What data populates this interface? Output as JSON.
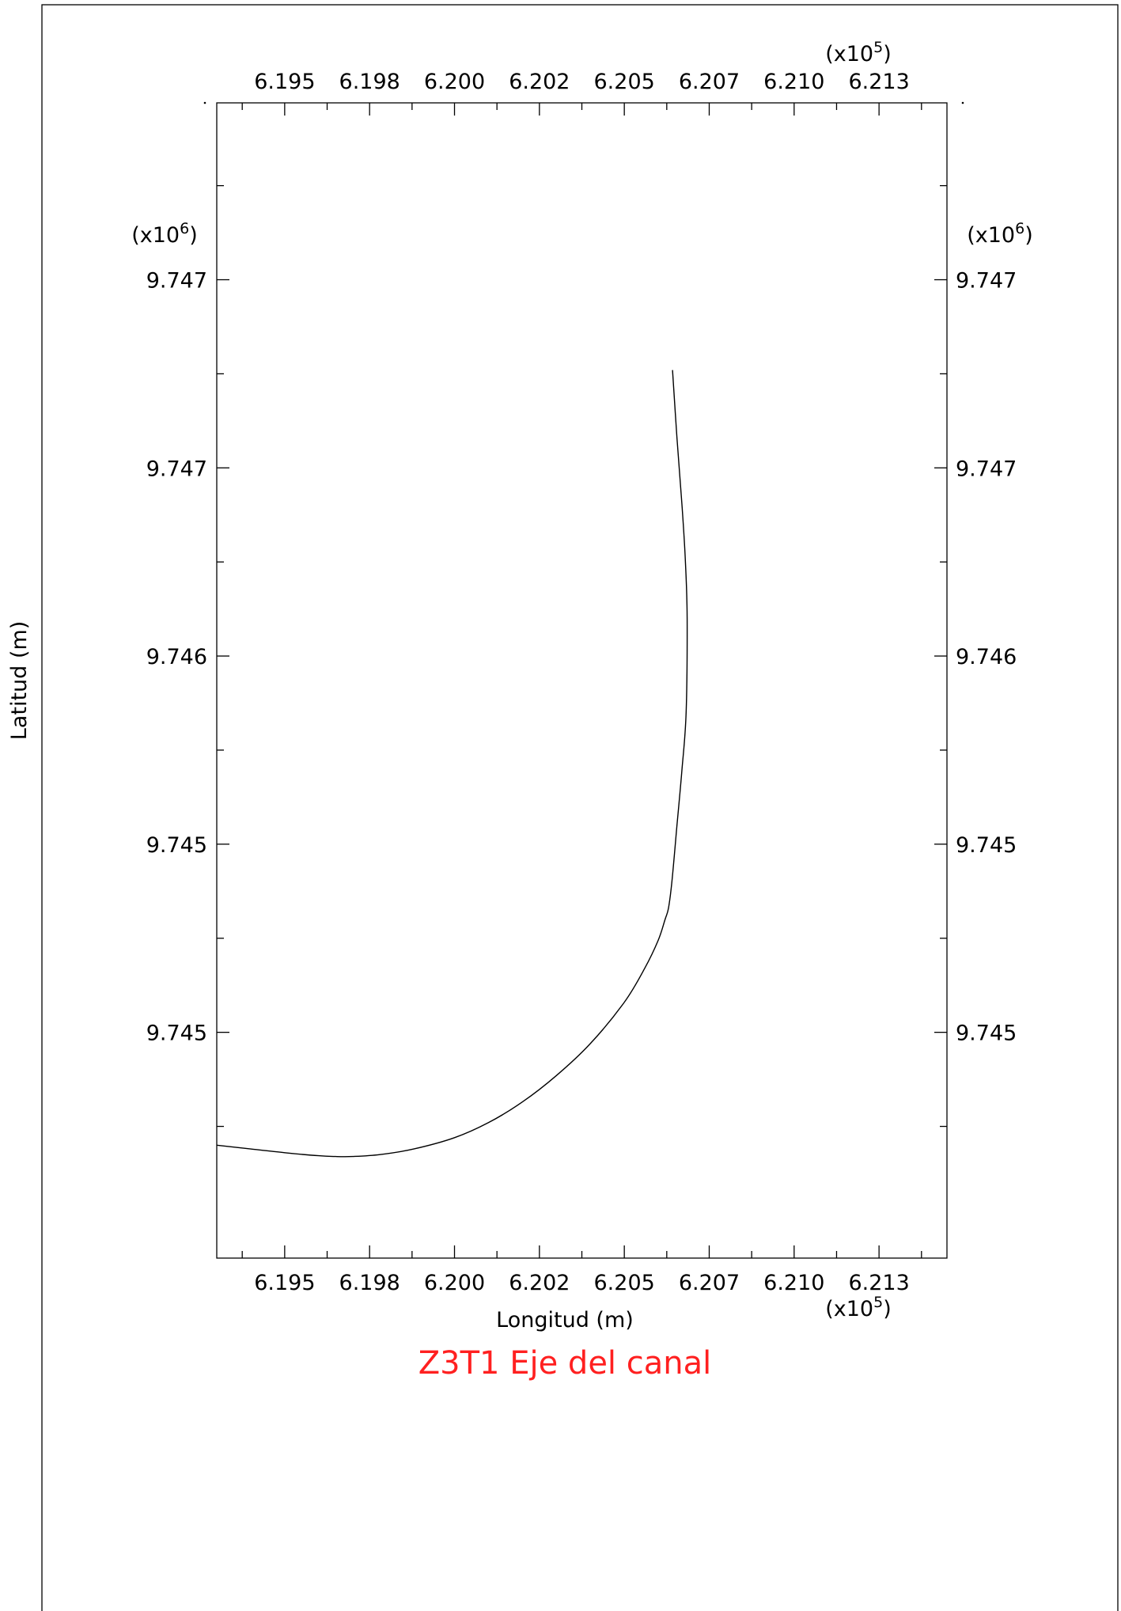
{
  "chart_data": {
    "type": "line",
    "title": "Z3T1 Eje del canal",
    "xlabel": "Longitud (m)",
    "ylabel": "Latitud (m)",
    "x_multiplier": "(x10",
    "x_multiplier_exp": "5",
    "y_multiplier": "(x10",
    "y_multiplier_exp": "6",
    "x_tick_labels": [
      "6.195",
      "6.198",
      "6.200",
      "6.202",
      "6.205",
      "6.207",
      "6.210",
      "6.213"
    ],
    "y_tick_labels": [
      "9.747",
      "9.747",
      "9.746",
      "9.745",
      "9.745"
    ],
    "xlim": [
      619300,
      621450
    ],
    "ylim": [
      9744400,
      9747470
    ],
    "x_tick_values": [
      619500,
      619750,
      620000,
      620250,
      620500,
      620750,
      621000,
      621250
    ],
    "y_tick_values": [
      9747000,
      9746500,
      9746000,
      9745500,
      9745000
    ],
    "grid": false,
    "title_color": "#ff2020",
    "line_color": "#000000",
    "series": [
      {
        "x": [
          619300,
          619400,
          619500,
          619600,
          619650,
          619700,
          619780,
          619880,
          620000,
          620100,
          620200,
          620300,
          620400,
          620500,
          620560,
          620600,
          620620,
          620630,
          620640,
          620655,
          620670,
          620682,
          620685,
          620680,
          620670,
          620655,
          620642
        ],
        "y": [
          9744700,
          9744690,
          9744680,
          9744672,
          9744670,
          9744670,
          9744675,
          9744690,
          9744720,
          9744760,
          9744815,
          9744885,
          9744970,
          9745080,
          9745170,
          9745245,
          9745300,
          9745330,
          9745400,
          9745550,
          9745700,
          9745850,
          9746100,
          9746250,
          9746400,
          9746580,
          9746760
        ]
      }
    ]
  }
}
